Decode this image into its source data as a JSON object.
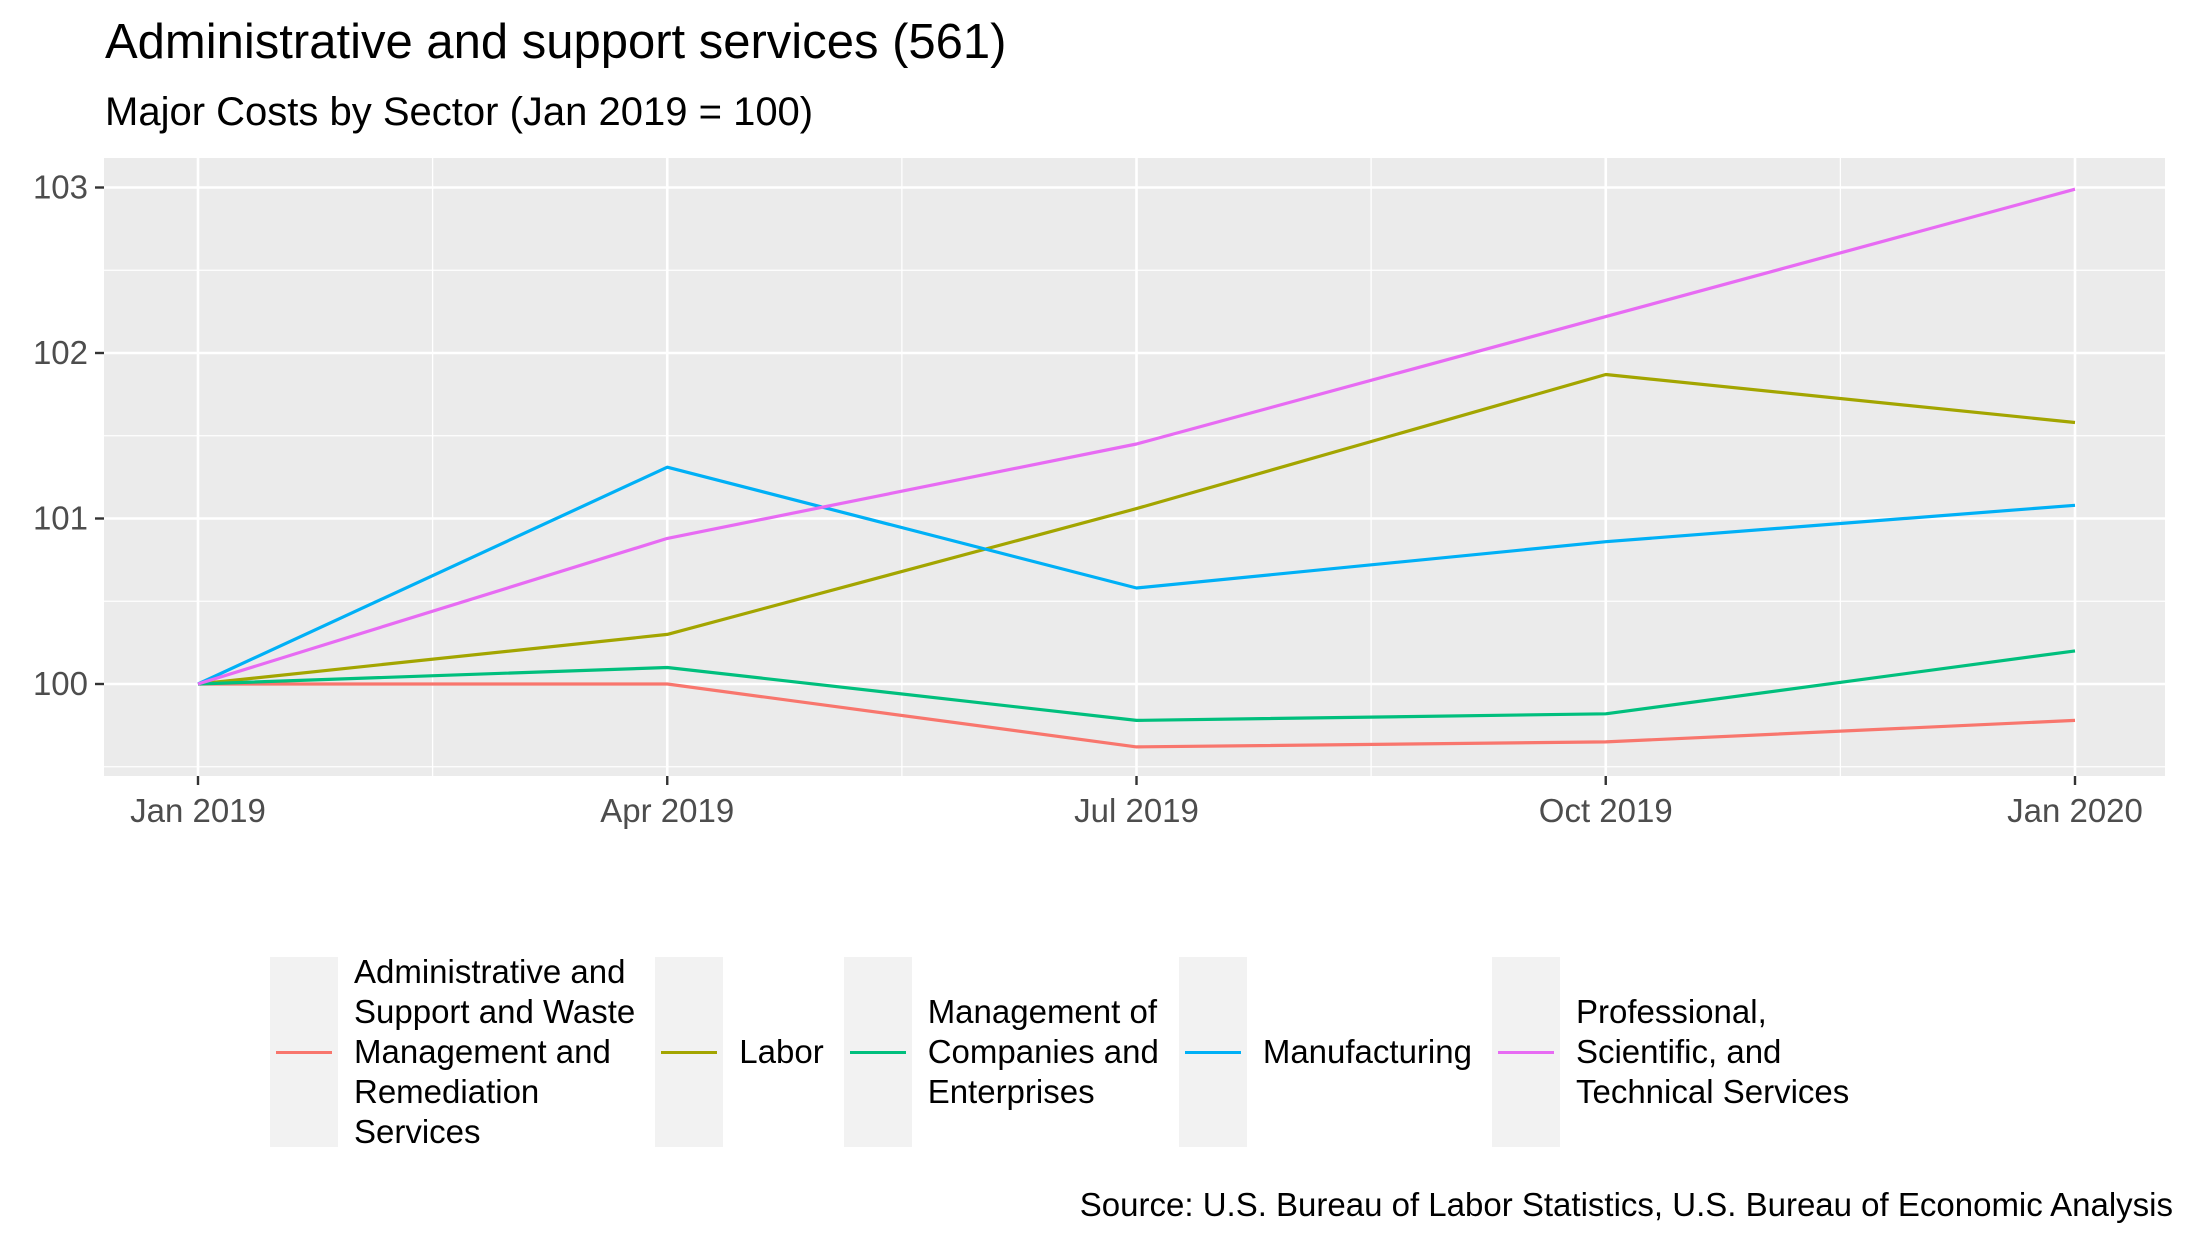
{
  "chart_data": {
    "type": "line",
    "title": "Administrative and support services (561)",
    "subtitle": "Major Costs by Sector (Jan 2019 = 100)",
    "x": [
      "Jan 2019",
      "Apr 2019",
      "Jul 2019",
      "Oct 2019",
      "Jan 2020"
    ],
    "x_ticks": [
      "Jan 2019",
      "Apr 2019",
      "Jul 2019",
      "Oct 2019",
      "Jan 2020"
    ],
    "y_ticks": [
      100,
      101,
      102,
      103
    ],
    "ylim": [
      99.5,
      103.1
    ],
    "grid": true,
    "legend_position": "bottom",
    "series": [
      {
        "name": "Administrative and Support and Waste Management and Remediation Services",
        "label_lines": [
          "Administrative and",
          "Support and Waste",
          "Management and",
          "Remediation",
          "Services"
        ],
        "color": "#F8766D",
        "values": [
          100.0,
          100.0,
          99.62,
          99.65,
          99.78
        ]
      },
      {
        "name": "Labor",
        "label_lines": [
          "Labor"
        ],
        "color": "#A3A500",
        "values": [
          100.0,
          100.3,
          101.06,
          101.87,
          101.58
        ]
      },
      {
        "name": "Management of Companies and Enterprises",
        "label_lines": [
          "Management of",
          "Companies and",
          "Enterprises"
        ],
        "color": "#00BF7D",
        "values": [
          100.0,
          100.1,
          99.78,
          99.82,
          100.2
        ]
      },
      {
        "name": "Manufacturing",
        "label_lines": [
          "Manufacturing"
        ],
        "color": "#00B0F6",
        "values": [
          100.0,
          101.31,
          100.58,
          100.86,
          101.08
        ]
      },
      {
        "name": "Professional, Scientific, and Technical Services",
        "label_lines": [
          "Professional,",
          "Scientific, and",
          "Technical Services"
        ],
        "color": "#E76BF3",
        "values": [
          100.0,
          100.88,
          101.45,
          102.22,
          102.99
        ]
      }
    ],
    "source": "Source: U.S. Bureau of Labor Statistics, U.S. Bureau of Economic Analysis"
  }
}
